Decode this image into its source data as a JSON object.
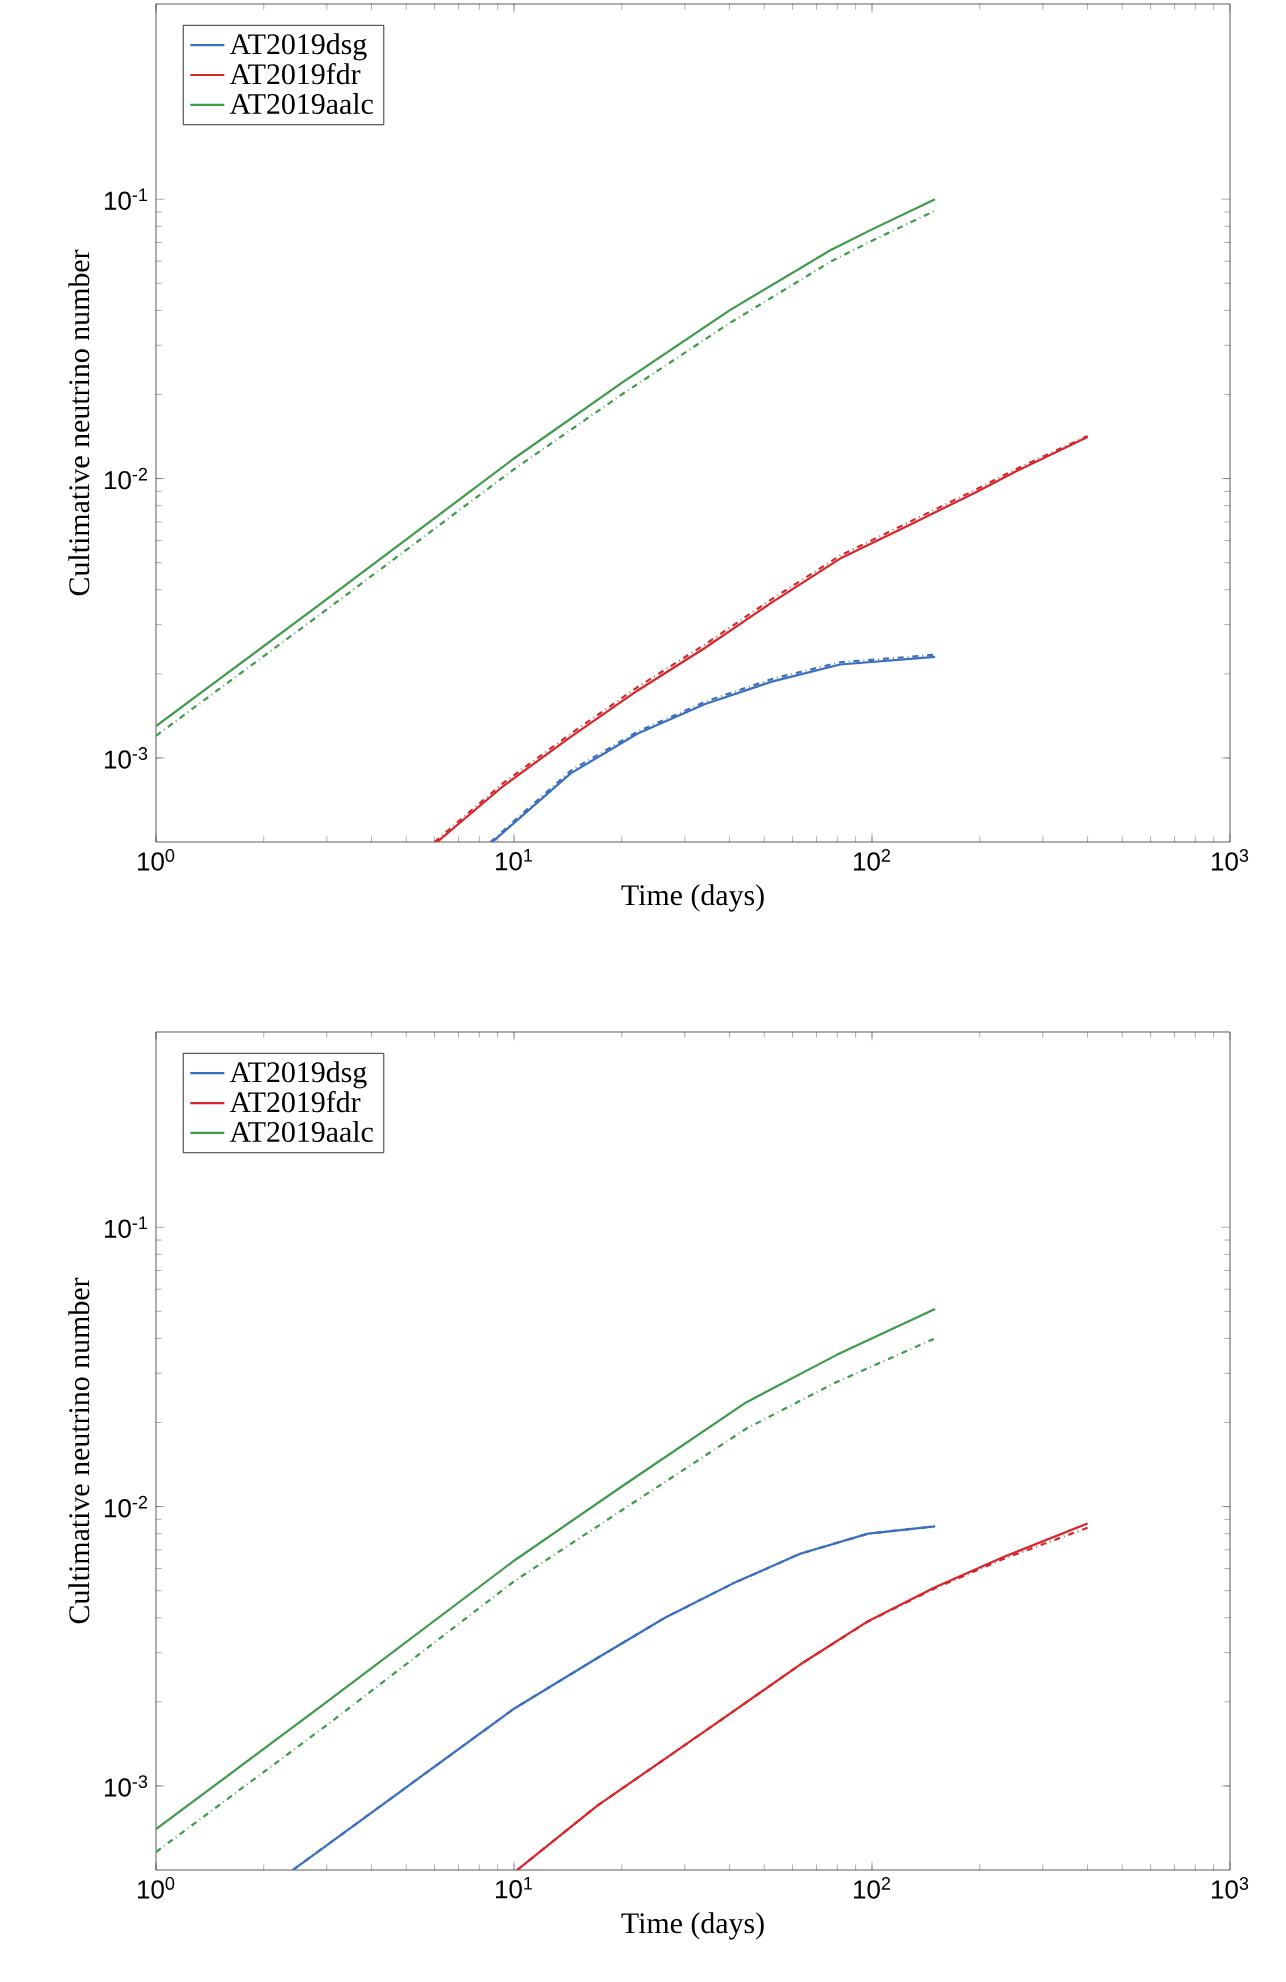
{
  "chart_data": [
    {
      "type": "line",
      "xlabel": "Time (days)",
      "ylabel": "Cultimative neutrino number",
      "log": "xy",
      "legend": "top left",
      "grid": false,
      "marker": "none",
      "xlim": [
        1,
        1000
      ],
      "ylim": [
        0.0005,
        0.5
      ],
      "xticks": [
        {
          "value": 1,
          "label": "10$^{0}$"
        },
        {
          "value": 10,
          "label": "10$^{1}$"
        },
        {
          "value": 100,
          "label": "10$^{2}$"
        },
        {
          "value": 1000,
          "label": "10$^{3}$"
        }
      ],
      "yticks": [
        {
          "value": 0.001,
          "label": "10$^{-3}$"
        },
        {
          "value": 0.01,
          "label": "10$^{-2}$"
        },
        {
          "value": 0.1,
          "label": "10$^{-1}$"
        }
      ],
      "series": [
        {
          "name": "AT2019dsg",
          "color": "#3a6fbf",
          "line_style": "solid",
          "x": [
            8.7,
            14.4,
            22.1,
            34.2,
            52.8,
            81.5,
            150
          ],
          "values": [
            0.0005,
            0.00088,
            0.00122,
            0.00156,
            0.00188,
            0.00216,
            0.0023
          ]
        },
        {
          "name": "AT2019fdr",
          "color": "#d7262b",
          "line_style": "solid",
          "x": [
            6.1,
            9.3,
            14.4,
            22.1,
            34.2,
            52.8,
            81.5,
            126,
            194,
            252,
            400
          ],
          "values": [
            0.0005,
            0.00079,
            0.00119,
            0.00174,
            0.00248,
            0.00362,
            0.00517,
            0.00678,
            0.0089,
            0.0106,
            0.0141
          ]
        },
        {
          "name": "AT2019aalc",
          "color": "#3d9a4a",
          "line_style": "solid",
          "x": [
            1,
            3,
            10,
            20,
            40,
            77,
            100,
            150
          ],
          "values": [
            0.0013,
            0.0037,
            0.0118,
            0.022,
            0.04,
            0.066,
            0.078,
            0.1
          ]
        },
        {
          "color": "#3a6fbf",
          "line_style": "dashdot",
          "x": [
            8.6,
            14.4,
            22.1,
            34.2,
            52.8,
            81.5,
            150
          ],
          "values": [
            0.0005,
            0.0009,
            0.00124,
            0.00159,
            0.00192,
            0.0022,
            0.00234
          ]
        },
        {
          "color": "#d7262b",
          "line_style": "dashdot",
          "x": [
            6,
            9.3,
            14.4,
            22.1,
            34.2,
            52.8,
            81.5,
            126,
            194,
            252,
            400
          ],
          "values": [
            0.0005,
            0.00081,
            0.00122,
            0.00179,
            0.00255,
            0.00372,
            0.0053,
            0.00695,
            0.0091,
            0.0108,
            0.0142
          ]
        },
        {
          "color": "#3d9a4a",
          "line_style": "dashdot",
          "x": [
            1,
            3,
            10,
            20,
            40,
            77,
            100,
            150
          ],
          "values": [
            0.0012,
            0.0034,
            0.0108,
            0.02,
            0.036,
            0.06,
            0.071,
            0.091
          ]
        }
      ]
    },
    {
      "type": "line",
      "xlabel": "Time (days)",
      "ylabel": "Cultimative neutrino number",
      "log": "xy",
      "legend": "top left",
      "grid": false,
      "marker": "none",
      "xlim": [
        1,
        1000
      ],
      "ylim": [
        0.0005,
        0.5
      ],
      "xticks": [
        {
          "value": 1,
          "label": "10$^{0}$"
        },
        {
          "value": 10,
          "label": "10$^{1}$"
        },
        {
          "value": 100,
          "label": "10$^{2}$"
        },
        {
          "value": 1000,
          "label": "10$^{3}$"
        }
      ],
      "yticks": [
        {
          "value": 0.001,
          "label": "10$^{-3}$"
        },
        {
          "value": 0.01,
          "label": "10$^{-2}$"
        },
        {
          "value": 0.1,
          "label": "10$^{-1}$"
        }
      ],
      "series": [
        {
          "name": "AT2019dsg",
          "color": "#3a6fbf",
          "line_style": "solid",
          "x": [
            2.41,
            4.63,
            10,
            17.1,
            26.4,
            40.8,
            63,
            97.5,
            150
          ],
          "values": [
            0.0005,
            0.00092,
            0.00189,
            0.00287,
            0.004,
            0.0053,
            0.00678,
            0.008,
            0.0085
          ]
        },
        {
          "name": "AT2019fdr",
          "color": "#d7262b",
          "line_style": "solid",
          "x": [
            10.2,
            17.1,
            26.4,
            40.8,
            63,
            97.5,
            150,
            233,
            400
          ],
          "values": [
            0.0005,
            0.00085,
            0.00125,
            0.00184,
            0.00272,
            0.00389,
            0.00514,
            0.0066,
            0.0087
          ]
        },
        {
          "name": "AT2019aalc",
          "color": "#3d9a4a",
          "line_style": "solid",
          "x": [
            1,
            3,
            10,
            20,
            44.5,
            80,
            150
          ],
          "values": [
            0.0007,
            0.002,
            0.0064,
            0.0118,
            0.0236,
            0.035,
            0.051
          ]
        },
        {
          "color": "#3a6fbf",
          "line_style": "dashdot",
          "x": [
            2.41,
            4.63,
            10,
            17.1,
            26.4,
            40.8,
            63,
            97.5,
            150
          ],
          "values": [
            0.0005,
            0.00092,
            0.00189,
            0.00287,
            0.004,
            0.0053,
            0.00678,
            0.008,
            0.0085
          ]
        },
        {
          "color": "#d7262b",
          "line_style": "dashdot",
          "x": [
            10.2,
            17.1,
            26.4,
            40.8,
            63,
            97.5,
            150,
            233,
            400
          ],
          "values": [
            0.0005,
            0.00085,
            0.00125,
            0.00184,
            0.00272,
            0.00388,
            0.0051,
            0.0065,
            0.0084
          ]
        },
        {
          "color": "#3d9a4a",
          "line_style": "dashdot",
          "x": [
            1,
            3,
            10,
            20,
            44.5,
            80,
            150
          ],
          "values": [
            0.00058,
            0.00165,
            0.0054,
            0.0097,
            0.019,
            0.028,
            0.04
          ]
        }
      ]
    }
  ]
}
